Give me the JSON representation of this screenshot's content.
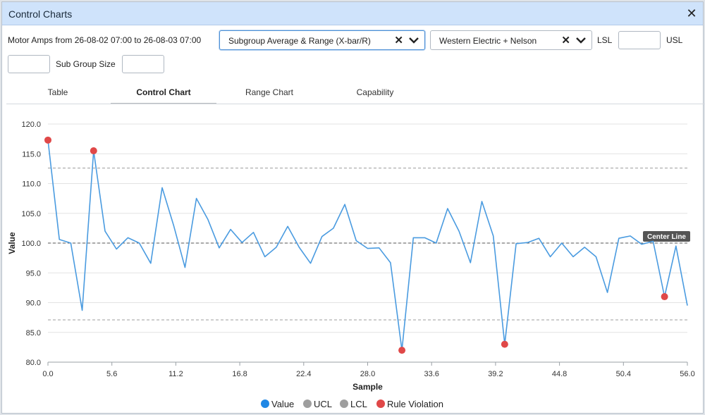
{
  "window": {
    "title": "Control Charts"
  },
  "toolbar": {
    "range_text": "Motor Amps from 26-08-02 07:00 to 26-08-03 07:00",
    "chart_type": "Subgroup Average & Range (X-bar/R)",
    "rule_set": "Western Electric + Nelson",
    "lsl_label": "LSL",
    "lsl_value": "",
    "usl_label": "USL",
    "usl_value": "",
    "subgroup_label": "Sub Group Size",
    "subgroup_value": "",
    "extra_value": ""
  },
  "tabs": [
    {
      "label": "Table",
      "active": false
    },
    {
      "label": "Control Chart",
      "active": true
    },
    {
      "label": "Range Chart",
      "active": false
    },
    {
      "label": "Capability",
      "active": false
    }
  ],
  "colors": {
    "series": "#4a9be0",
    "limit": "#9e9e9e",
    "violation": "#e04848",
    "legend_value": "#1f87e5"
  },
  "chart_data": {
    "type": "line",
    "xlabel": "Sample",
    "ylabel": "Value",
    "xlim": [
      0,
      56
    ],
    "ylim": [
      80,
      120
    ],
    "xticks": [
      "0.0",
      "5.6",
      "11.2",
      "16.8",
      "22.4",
      "28.0",
      "33.6",
      "39.2",
      "44.8",
      "50.4",
      "56.0"
    ],
    "yticks": [
      "80.0",
      "85.0",
      "90.0",
      "95.0",
      "100.0",
      "105.0",
      "110.0",
      "115.0",
      "120.0"
    ],
    "grid": true,
    "series": [
      {
        "name": "Value",
        "x": [
          0,
          1,
          2,
          3,
          4,
          5,
          6,
          7,
          8,
          9,
          10,
          11,
          12,
          13,
          14,
          15,
          16,
          17,
          18,
          19,
          20,
          21,
          22,
          23,
          24,
          25,
          26,
          27,
          28,
          29,
          30,
          31,
          32,
          33,
          34,
          35,
          36,
          37,
          38,
          39,
          40,
          41,
          42,
          43,
          44,
          45,
          46,
          47,
          48,
          49,
          50,
          51,
          52,
          53,
          54,
          55,
          56
        ],
        "values": [
          117.3,
          100.6,
          100.0,
          88.7,
          115.5,
          102.0,
          99.0,
          100.9,
          100.0,
          96.6,
          109.3,
          103.0,
          95.9,
          107.5,
          104.0,
          99.2,
          102.3,
          100.1,
          101.8,
          97.7,
          99.3,
          102.8,
          99.3,
          96.6,
          101.1,
          102.5,
          106.5,
          100.4,
          99.1,
          99.2,
          96.7,
          82.0,
          100.9,
          100.9,
          100.0,
          105.8,
          102.0,
          96.7,
          107.0,
          101.2,
          83.0,
          99.9,
          100.1,
          100.8,
          97.7,
          100.0,
          97.7,
          99.3,
          97.7,
          91.7,
          100.8,
          101.2,
          99.8,
          100.3,
          91.0,
          99.5,
          89.5
        ]
      }
    ],
    "center_line": 100.0,
    "ucl": 112.6,
    "lcl": 87.1,
    "center_label": "Center Line",
    "violations": [
      {
        "x": 0,
        "y": 117.3
      },
      {
        "x": 4,
        "y": 115.5
      },
      {
        "x": 31,
        "y": 82.0
      },
      {
        "x": 40,
        "y": 83.0
      },
      {
        "x": 54,
        "y": 91.0
      }
    ],
    "legend": [
      "Value",
      "UCL",
      "LCL",
      "Rule Violation"
    ],
    "legend_position": "bottom"
  }
}
